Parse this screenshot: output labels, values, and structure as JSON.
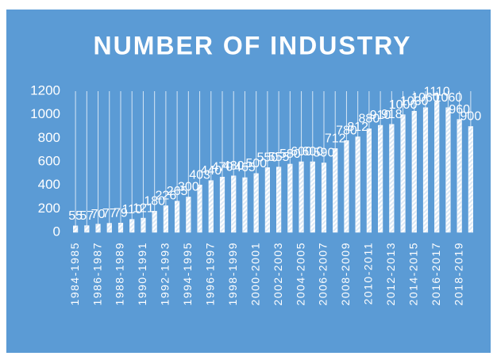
{
  "chart_data": {
    "type": "bar",
    "title": "NUMBER OF INDUSTRY",
    "categories": [
      "1984-1985",
      null,
      "1986-1987",
      null,
      "1988-1989",
      null,
      "1990-1991",
      null,
      "1992-1993",
      null,
      "1994-1995",
      null,
      "1996-1997",
      null,
      "1998-1999",
      null,
      "2000-2001",
      null,
      "2002-2003",
      null,
      "2004-2005",
      null,
      "2006-2007",
      null,
      "2008-2009",
      null,
      "2010-2011",
      null,
      "2012-2013",
      null,
      "2014-2015",
      null,
      "2016-2017",
      null,
      "2018-2019",
      null
    ],
    "values": [
      55,
      57,
      70,
      77,
      79,
      110,
      121,
      180,
      226,
      265,
      300,
      403,
      440,
      470,
      480,
      465,
      500,
      550,
      555,
      580,
      600,
      600,
      590,
      712,
      780,
      812,
      880,
      910,
      918,
      1000,
      1030,
      1060,
      1110,
      1060,
      960,
      900
    ],
    "color": "#ffffff",
    "ylim": [
      0,
      1200
    ],
    "yticks": [
      0,
      200,
      400,
      600,
      800,
      1000,
      1200
    ],
    "grid": false,
    "data_labels": true
  }
}
